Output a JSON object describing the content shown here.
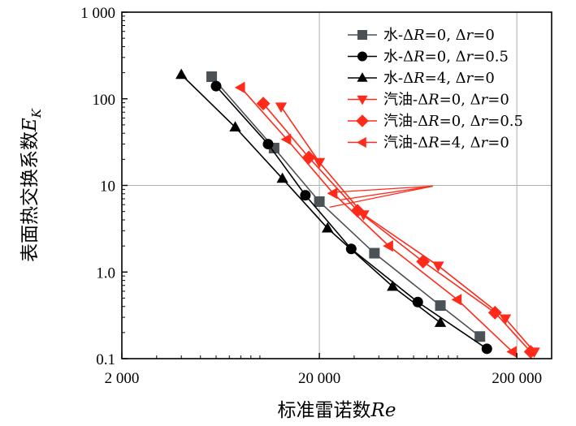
{
  "chart_data": {
    "type": "scatter",
    "title": "",
    "xlabel": "标准雷诺数Re",
    "ylabel": "表面热交换系数E_K",
    "xscale": "log",
    "yscale": "log",
    "xlim": [
      2000,
      300000
    ],
    "ylim": [
      0.1,
      1000
    ],
    "grid": "single gridline at x=20000, x=200000 and y=10",
    "xticks": [
      2000,
      20000,
      200000
    ],
    "xtick_labels": [
      "2 000",
      "20 000",
      "200 000"
    ],
    "yticks": [
      0.1,
      1,
      10,
      100,
      1000
    ],
    "ytick_labels": [
      "0.1",
      "1.0",
      "10",
      "100",
      "1 000"
    ],
    "legend_position": "top-right",
    "annotation": "arrow lines pointing from the gasoline (red) series toward the water (black) series",
    "series": [
      {
        "name": "水-ΔR=0, Δr=0",
        "label_prefix": "水-Δ",
        "label_r": "R",
        "label_mid": "=0, Δ",
        "label_s": "r",
        "label_end": "=0",
        "marker": "square",
        "color": "#4a5157",
        "x": [
          5700,
          11800,
          20000,
          38000,
          82000,
          130000
        ],
        "y": [
          180,
          27,
          6.5,
          1.65,
          0.41,
          0.18
        ]
      },
      {
        "name": "水-ΔR=0, Δr=0.5",
        "label_prefix": "水-Δ",
        "label_r": "R",
        "label_mid": "=0, Δ",
        "label_s": "r",
        "label_end": "=0.5",
        "marker": "circle",
        "color": "#000000",
        "x": [
          6000,
          11000,
          17000,
          29000,
          63000,
          141000
        ],
        "y": [
          140,
          30,
          7.7,
          1.85,
          0.45,
          0.13
        ]
      },
      {
        "name": "水-ΔR=4, Δr=0",
        "label_prefix": "水-Δ",
        "label_r": "R",
        "label_mid": "=4, Δ",
        "label_s": "r",
        "label_end": "=0",
        "marker": "triangle-up",
        "color": "#000000",
        "x": [
          4000,
          7500,
          13000,
          22000,
          47000,
          82000
        ],
        "y": [
          190,
          47,
          12,
          3.2,
          0.68,
          0.26
        ]
      },
      {
        "name": "汽油-ΔR=0, Δr=0",
        "label_prefix": "汽油-Δ",
        "label_r": "R",
        "label_mid": "=0, Δ",
        "label_s": "r",
        "label_end": "=0",
        "marker": "triangle-down",
        "color": "#ff2a1a",
        "x": [
          12800,
          20000,
          33500,
          80000,
          175000,
          245000
        ],
        "y": [
          81,
          18.5,
          4.6,
          1.18,
          0.29,
          0.12
        ]
      },
      {
        "name": "汽油-ΔR=0, Δr=0.5",
        "label_prefix": "汽油-Δ",
        "label_r": "R",
        "label_mid": "=0, Δ",
        "label_s": "r",
        "label_end": "=0.5",
        "marker": "diamond",
        "color": "#ff2a1a",
        "x": [
          10400,
          17700,
          31200,
          67000,
          155000,
          235000
        ],
        "y": [
          88,
          21,
          5.1,
          1.32,
          0.34,
          0.12
        ]
      },
      {
        "name": "汽油-ΔR=4, Δr=0",
        "label_prefix": "汽油-Δ",
        "label_r": "R",
        "label_mid": "=4, Δ",
        "label_s": "r",
        "label_end": "=0",
        "marker": "triangle-left",
        "color": "#ff2a1a",
        "x": [
          8000,
          13700,
          23500,
          45000,
          100000,
          190000
        ],
        "y": [
          135,
          34,
          8.1,
          2.0,
          0.48,
          0.12
        ]
      }
    ]
  }
}
